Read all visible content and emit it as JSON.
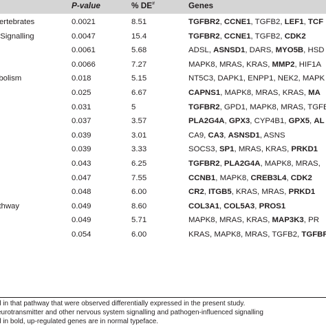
{
  "table": {
    "headers": {
      "p_value": "P-value",
      "percent_de": "% DE",
      "percent_de_mark": "#",
      "genes": "Genes"
    },
    "rows": [
      {
        "pathway": "Vertebrates",
        "p": "0.0021",
        "de": "8.51",
        "genes": [
          {
            "t": "TGFBR2",
            "b": true
          },
          {
            "t": ", ",
            "b": false
          },
          {
            "t": "CCNE1",
            "b": true
          },
          {
            "t": ", TGFB2, ",
            "b": false
          },
          {
            "t": "LEF1",
            "b": true
          },
          {
            "t": ", ",
            "b": false
          },
          {
            "t": "TCF",
            "b": true
          }
        ]
      },
      {
        "pathway": "ll Signalling",
        "p": "0.0047",
        "de": "15.4",
        "genes": [
          {
            "t": "TGFBR2",
            "b": true
          },
          {
            "t": ", ",
            "b": false
          },
          {
            "t": "CCNE1",
            "b": true
          },
          {
            "t": ", TGFB2, ",
            "b": false
          },
          {
            "t": "CDK2",
            "b": true
          }
        ]
      },
      {
        "pathway": "",
        "p": "0.0061",
        "de": "5.68",
        "genes": [
          {
            "t": "ADSL, ",
            "b": false
          },
          {
            "t": "ASNSD1",
            "b": true
          },
          {
            "t": ", DARS, ",
            "b": false
          },
          {
            "t": "MYO5B",
            "b": true
          },
          {
            "t": ", HSD",
            "b": false
          }
        ]
      },
      {
        "pathway": "",
        "p": "0.0066",
        "de": "7.27",
        "genes": [
          {
            "t": "MAPK8, MRAS, KRAS, ",
            "b": false
          },
          {
            "t": "MMP2",
            "b": true
          },
          {
            "t": ", HIF1A",
            "b": false
          }
        ]
      },
      {
        "pathway": "abolism",
        "p": "0.018",
        "de": "5.15",
        "genes": [
          {
            "t": "NT5C3, DAPK1, ENPP1, NEK2, MAPK",
            "b": false
          }
        ]
      },
      {
        "pathway": "",
        "p": "0.025",
        "de": "6.67",
        "genes": [
          {
            "t": "CAPNS1",
            "b": true
          },
          {
            "t": ", MAPK8, MRAS, KRAS, ",
            "b": false
          },
          {
            "t": "MA",
            "b": true
          }
        ]
      },
      {
        "pathway": "",
        "p": "0.031",
        "de": "5",
        "genes": [
          {
            "t": "TGFBR2",
            "b": true
          },
          {
            "t": ", GPD1, MAPK8, MRAS, TGFB",
            "b": false
          }
        ]
      },
      {
        "pathway": "",
        "p": "0.037",
        "de": "3.57",
        "genes": [
          {
            "t": "PLA2G4A",
            "b": true
          },
          {
            "t": ", ",
            "b": false
          },
          {
            "t": "GPX3",
            "b": true
          },
          {
            "t": ", CYP4B1, ",
            "b": false
          },
          {
            "t": "GPX5",
            "b": true
          },
          {
            "t": ", ",
            "b": false
          },
          {
            "t": "AL",
            "b": true
          }
        ]
      },
      {
        "pathway": "",
        "p": "0.039",
        "de": "3.01",
        "genes": [
          {
            "t": "CA9, ",
            "b": false
          },
          {
            "t": "CA3",
            "b": true
          },
          {
            "t": ", ",
            "b": false
          },
          {
            "t": "ASNSD1",
            "b": true
          },
          {
            "t": ", ASNS",
            "b": false
          }
        ]
      },
      {
        "pathway": "",
        "p": "0.039",
        "de": "3.33",
        "genes": [
          {
            "t": "SOCS3, ",
            "b": false
          },
          {
            "t": "SP1",
            "b": true
          },
          {
            "t": ", MRAS, KRAS, ",
            "b": false
          },
          {
            "t": "PRKD1",
            "b": true
          }
        ]
      },
      {
        "pathway": "",
        "p": "0.043",
        "de": "6.25",
        "genes": [
          {
            "t": "TGFBR2",
            "b": true
          },
          {
            "t": ", ",
            "b": false
          },
          {
            "t": "PLA2G4A",
            "b": true
          },
          {
            "t": ", MAPK8, MRAS,",
            "b": false
          }
        ]
      },
      {
        "pathway": "",
        "p": "0.047",
        "de": "7.55",
        "genes": [
          {
            "t": "CCNB1",
            "b": true
          },
          {
            "t": ", MAPK8, ",
            "b": false
          },
          {
            "t": "CREB3L4",
            "b": true
          },
          {
            "t": ", ",
            "b": false
          },
          {
            "t": "CDK2",
            "b": true
          }
        ]
      },
      {
        "pathway": "",
        "p": "0.048",
        "de": "6.00",
        "genes": [
          {
            "t": "CR2",
            "b": true
          },
          {
            "t": ", ",
            "b": false
          },
          {
            "t": "ITGB5",
            "b": true
          },
          {
            "t": ", KRAS, MRAS, ",
            "b": false
          },
          {
            "t": "PRKD1",
            "b": true
          }
        ]
      },
      {
        "pathway": "athway",
        "p": "0.049",
        "de": "8.60",
        "genes": [
          {
            "t": "COL3A1",
            "b": true
          },
          {
            "t": ", ",
            "b": false
          },
          {
            "t": "COL5A3",
            "b": true
          },
          {
            "t": ", ",
            "b": false
          },
          {
            "t": "PROS1",
            "b": true
          }
        ]
      },
      {
        "pathway": "",
        "p": "0.049",
        "de": "5.71",
        "genes": [
          {
            "t": "MAPK8, MRAS, KRAS, ",
            "b": false
          },
          {
            "t": "MAP3K3",
            "b": true
          },
          {
            "t": ", PR",
            "b": false
          }
        ]
      },
      {
        "pathway": "",
        "p": "0.054",
        "de": "6.00",
        "genes": [
          {
            "t": "KRAS, MAPK8, MRAS, TGFB2, ",
            "b": false
          },
          {
            "t": "TGFBR",
            "b": true
          }
        ]
      }
    ]
  },
  "footnotes": [
    "d in that pathway that were observed differentially expressed in the present study.",
    "eurotransmitter and other nervous system signalling and pathogen-influenced signalling",
    "d in bold, up-regulated genes are in normal typeface."
  ]
}
